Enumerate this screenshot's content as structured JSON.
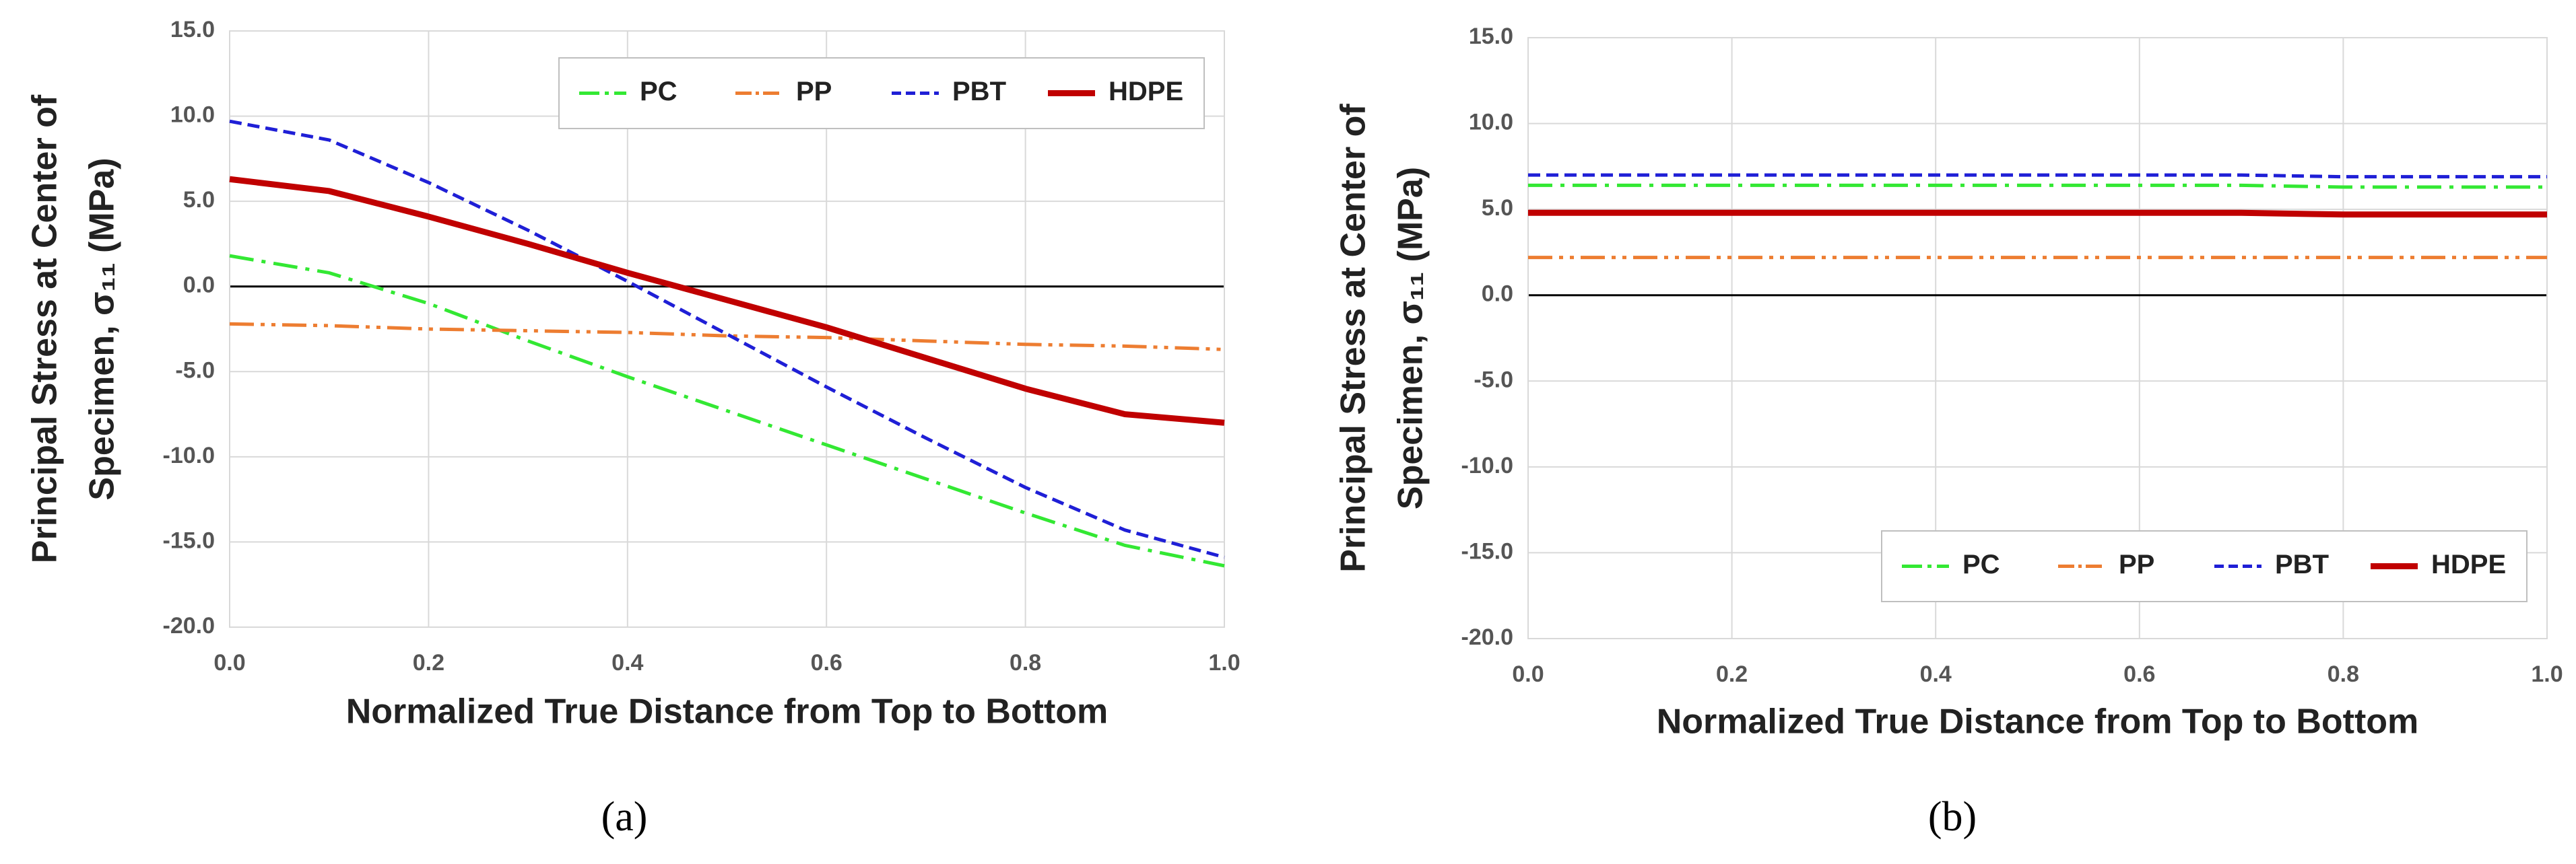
{
  "chart_data": [
    {
      "type": "line",
      "caption": "(a)",
      "xlabel": "Normalized True Distance from Top to Bottom",
      "ylabel": [
        "Principal Stress at Center of",
        "Specimen, σ₁₁ (MPa)"
      ],
      "x": [
        0,
        0.1,
        0.2,
        0.3,
        0.4,
        0.5,
        0.6,
        0.7,
        0.8,
        0.9,
        1.0
      ],
      "series": [
        {
          "name": "PC",
          "color": "#33e833",
          "values": [
            1.8,
            0.8,
            -1.0,
            -3.2,
            -5.3,
            -7.3,
            -9.3,
            -11.3,
            -13.3,
            -15.2,
            -16.4
          ]
        },
        {
          "name": "PP",
          "color": "#ed7d31",
          "values": [
            -2.2,
            -2.3,
            -2.5,
            -2.6,
            -2.7,
            -2.9,
            -3.0,
            -3.2,
            -3.4,
            -3.5,
            -3.7
          ]
        },
        {
          "name": "PBT",
          "color": "#1f1fd6",
          "values": [
            9.7,
            8.6,
            6.1,
            3.3,
            0.3,
            -2.8,
            -5.9,
            -8.9,
            -11.8,
            -14.3,
            -15.9
          ]
        },
        {
          "name": "HDPE",
          "color": "#c00000",
          "values": [
            6.3,
            5.6,
            4.1,
            2.5,
            0.8,
            -0.8,
            -2.4,
            -4.2,
            -6.0,
            -7.5,
            -8.0
          ]
        }
      ],
      "xlim": [
        0,
        1
      ],
      "ylim": [
        -20,
        15
      ],
      "xticks": [
        {
          "value": 0,
          "label": "0.0"
        },
        {
          "value": 0.2,
          "label": "0.2"
        },
        {
          "value": 0.4,
          "label": "0.4"
        },
        {
          "value": 0.6,
          "label": "0.6"
        },
        {
          "value": 0.8,
          "label": "0.8"
        },
        {
          "value": 1,
          "label": "1.0"
        }
      ],
      "yticks": [
        {
          "value": -20,
          "label": "-20.0"
        },
        {
          "value": -15,
          "label": "-15.0"
        },
        {
          "value": -10,
          "label": "-10.0"
        },
        {
          "value": -5,
          "label": "-5.0"
        },
        {
          "value": 0,
          "label": "0.0"
        },
        {
          "value": 5,
          "label": "5.0"
        },
        {
          "value": 10,
          "label": "10.0"
        },
        {
          "value": 15,
          "label": "15.0"
        }
      ],
      "grid": true,
      "legend": "upper right"
    },
    {
      "type": "line",
      "caption": "(b)",
      "xlabel": "Normalized True Distance from Top to Bottom",
      "ylabel": [
        "Principal Stress at Center of",
        "Specimen, σ₁₁ (MPa)"
      ],
      "x": [
        0,
        0.1,
        0.2,
        0.3,
        0.4,
        0.5,
        0.6,
        0.7,
        0.8,
        0.9,
        1.0
      ],
      "series": [
        {
          "name": "PC",
          "color": "#33e833",
          "values": [
            6.4,
            6.4,
            6.4,
            6.4,
            6.4,
            6.4,
            6.4,
            6.4,
            6.3,
            6.3,
            6.3
          ]
        },
        {
          "name": "PP",
          "color": "#ed7d31",
          "values": [
            2.2,
            2.2,
            2.2,
            2.2,
            2.2,
            2.2,
            2.2,
            2.2,
            2.2,
            2.2,
            2.2
          ]
        },
        {
          "name": "PBT",
          "color": "#1f1fd6",
          "values": [
            7.0,
            7.0,
            7.0,
            7.0,
            7.0,
            7.0,
            7.0,
            7.0,
            6.9,
            6.9,
            6.9
          ]
        },
        {
          "name": "HDPE",
          "color": "#c00000",
          "values": [
            4.8,
            4.8,
            4.8,
            4.8,
            4.8,
            4.8,
            4.8,
            4.8,
            4.7,
            4.7,
            4.7
          ]
        }
      ],
      "xlim": [
        0,
        1
      ],
      "ylim": [
        -20,
        15
      ],
      "xticks": [
        {
          "value": 0,
          "label": "0.0"
        },
        {
          "value": 0.2,
          "label": "0.2"
        },
        {
          "value": 0.4,
          "label": "0.4"
        },
        {
          "value": 0.6,
          "label": "0.6"
        },
        {
          "value": 0.8,
          "label": "0.8"
        },
        {
          "value": 1,
          "label": "1.0"
        }
      ],
      "yticks": [
        {
          "value": -20,
          "label": "-20.0"
        },
        {
          "value": -15,
          "label": "-15.0"
        },
        {
          "value": -10,
          "label": "-10.0"
        },
        {
          "value": -5,
          "label": "-5.0"
        },
        {
          "value": 0,
          "label": "0.0"
        },
        {
          "value": 5,
          "label": "5.0"
        },
        {
          "value": 10,
          "label": "10.0"
        },
        {
          "value": 15,
          "label": "15.0"
        }
      ],
      "grid": true,
      "legend": "lower right"
    }
  ]
}
